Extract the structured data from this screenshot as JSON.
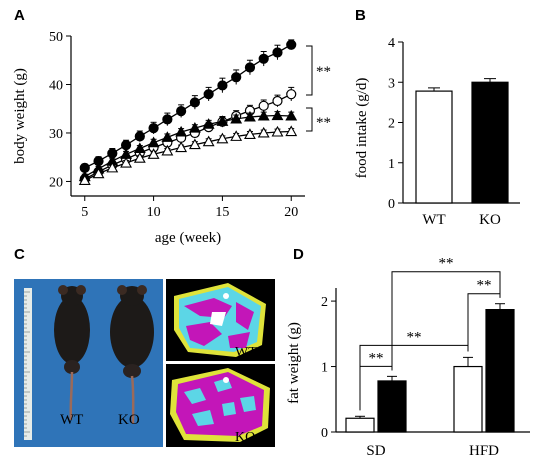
{
  "panels": {
    "A": "A",
    "B": "B",
    "C": "C",
    "D": "D"
  },
  "colors": {
    "axis": "#000000",
    "photo_bg": "#2f74b8",
    "ct_magenta": "#c316b8",
    "ct_cyan": "#5cd6e6",
    "ct_yellow": "#dfe33a"
  },
  "photo": {
    "mouse_wt_label": "WT",
    "mouse_ko_label": "KO",
    "ct_top_label": "WT",
    "ct_bottom_label": "KO"
  },
  "chart_data": [
    {
      "id": "A",
      "type": "line",
      "xlabel": "age (week)",
      "ylabel": "body weight (g)",
      "xlim": [
        4,
        21
      ],
      "ylim": [
        17,
        50
      ],
      "xticks": [
        5,
        10,
        15,
        20
      ],
      "yticks": [
        20,
        30,
        40,
        50
      ],
      "x": [
        5,
        6,
        7,
        8,
        9,
        10,
        11,
        12,
        13,
        14,
        15,
        16,
        17,
        18,
        19,
        20
      ],
      "series": [
        {
          "marker": "filled-circle",
          "values": [
            22.8,
            24.2,
            25.8,
            27.5,
            29.3,
            31.0,
            32.8,
            34.5,
            36.3,
            38.0,
            39.8,
            41.5,
            43.5,
            45.3,
            46.6,
            48.2
          ],
          "errors": [
            0.8,
            0.9,
            1.0,
            1.0,
            1.1,
            1.2,
            1.3,
            1.3,
            1.4,
            1.4,
            1.5,
            1.5,
            1.5,
            1.5,
            1.5,
            1.0
          ]
        },
        {
          "marker": "open-circle",
          "values": [
            20.5,
            22.0,
            23.4,
            24.6,
            25.9,
            27.0,
            28.0,
            29.0,
            30.0,
            31.2,
            32.3,
            33.5,
            34.6,
            35.6,
            36.6,
            38.0
          ],
          "errors": [
            0.6,
            0.7,
            0.7,
            0.8,
            0.8,
            0.9,
            0.9,
            1.0,
            1.0,
            1.0,
            1.1,
            1.1,
            1.1,
            1.2,
            1.2,
            1.4
          ]
        },
        {
          "marker": "filled-triangle",
          "values": [
            21.0,
            22.6,
            24.2,
            25.6,
            26.8,
            28.0,
            29.1,
            30.2,
            31.0,
            31.8,
            32.4,
            32.9,
            33.3,
            33.5,
            33.6,
            33.5
          ],
          "errors": [
            0.5,
            0.5,
            0.6,
            0.6,
            0.6,
            0.7,
            0.7,
            0.7,
            0.7,
            0.8,
            0.8,
            0.8,
            0.8,
            0.8,
            0.8,
            0.8
          ]
        },
        {
          "marker": "open-triangle",
          "values": [
            20.2,
            21.6,
            22.8,
            23.8,
            24.8,
            25.6,
            26.3,
            27.0,
            27.6,
            28.2,
            28.8,
            29.3,
            29.7,
            30.0,
            30.2,
            30.3
          ],
          "errors": [
            0.4,
            0.4,
            0.5,
            0.5,
            0.5,
            0.5,
            0.5,
            0.5,
            0.6,
            0.6,
            0.6,
            0.6,
            0.6,
            0.6,
            0.6,
            0.6
          ]
        }
      ],
      "annotations": [
        {
          "text": "**",
          "between": [
            "filled-circle",
            "open-circle"
          ],
          "at_x": 20
        },
        {
          "text": "**",
          "between": [
            "filled-triangle",
            "open-triangle"
          ],
          "at_x": 20
        }
      ]
    },
    {
      "id": "B",
      "type": "bar",
      "xlabel": "",
      "ylabel": "food intake (g/d)",
      "categories": [
        "WT",
        "KO"
      ],
      "values": [
        2.78,
        3.0
      ],
      "errors": [
        0.08,
        0.09
      ],
      "fills": [
        "#ffffff",
        "#000000"
      ],
      "ylim": [
        0,
        4
      ],
      "yticks": [
        0,
        1,
        2,
        3,
        4
      ]
    },
    {
      "id": "D",
      "type": "bar",
      "xlabel": "",
      "ylabel": "fat weight (g)",
      "categories": [
        "SD",
        "HFD"
      ],
      "series": [
        {
          "fill": "#ffffff",
          "values": [
            0.21,
            1.0
          ],
          "errors": [
            0.03,
            0.14
          ]
        },
        {
          "fill": "#000000",
          "values": [
            0.78,
            1.87
          ],
          "errors": [
            0.07,
            0.09
          ]
        }
      ],
      "ylim": [
        0,
        2.2
      ],
      "yticks": [
        0,
        1,
        2
      ],
      "annotations": [
        {
          "text": "**",
          "between": [
            "SD white",
            "SD black"
          ]
        },
        {
          "text": "**",
          "between": [
            "SD white",
            "HFD white"
          ]
        },
        {
          "text": "**",
          "between": [
            "HFD white",
            "HFD black"
          ]
        },
        {
          "text": "**",
          "between": [
            "SD black",
            "HFD black"
          ]
        }
      ]
    }
  ]
}
